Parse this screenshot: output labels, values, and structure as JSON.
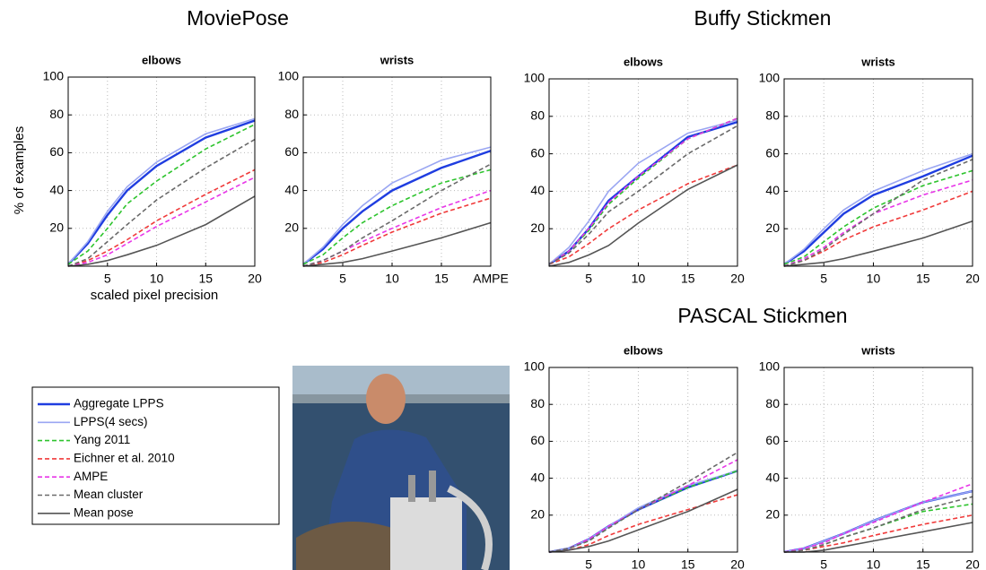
{
  "sections": [
    "MoviePose",
    "Buffy Stickmen",
    "PASCAL Stickmen"
  ],
  "chart_data": [
    {
      "type": "line",
      "title": "elbows",
      "ylabel": "% of examples",
      "xlabel": "scaled pixel precision",
      "x": [
        1,
        3,
        5,
        7,
        10,
        15,
        20
      ],
      "xlim": [
        1,
        20
      ],
      "ylim": [
        0,
        100
      ],
      "xticks": [
        5,
        10,
        15,
        20
      ],
      "yticks": [
        20,
        40,
        60,
        80,
        100
      ],
      "grid": true,
      "series": [
        {
          "name": "Aggregate LPPS",
          "color": "#1f3de0",
          "linestyle": "solid",
          "values": [
            1,
            12,
            27,
            40,
            53,
            68,
            77
          ]
        },
        {
          "name": "LPPS(4 secs)",
          "color": "#9aa6f2",
          "linestyle": "solid",
          "values": [
            1,
            13,
            29,
            42,
            55,
            70,
            78
          ]
        },
        {
          "name": "Yang 2011",
          "color": "#2ec42e",
          "linestyle": "dashed",
          "values": [
            1,
            8,
            20,
            33,
            45,
            62,
            75
          ]
        },
        {
          "name": "Eichner et al. 2010",
          "color": "#f03a3a",
          "linestyle": "dashed",
          "values": [
            0,
            3,
            8,
            14,
            24,
            38,
            51
          ]
        },
        {
          "name": "AMPE",
          "color": "#e836e8",
          "linestyle": "dashed",
          "values": [
            0,
            2,
            6,
            12,
            21,
            34,
            47
          ]
        },
        {
          "name": "Mean cluster",
          "color": "#6a6a6a",
          "linestyle": "dashed",
          "values": [
            0,
            4,
            13,
            22,
            35,
            52,
            67
          ]
        },
        {
          "name": "Mean pose",
          "color": "#555555",
          "linestyle": "solid",
          "values": [
            0,
            1,
            3,
            6,
            11,
            22,
            37
          ]
        }
      ]
    },
    {
      "type": "line",
      "title": "wrists",
      "x": [
        1,
        3,
        5,
        7,
        10,
        15,
        20
      ],
      "xlim": [
        1,
        20
      ],
      "ylim": [
        0,
        100
      ],
      "xticks": [
        5,
        10,
        15,
        {
          "value": 20,
          "label": "AMPE"
        }
      ],
      "yticks": [
        20,
        40,
        60,
        80,
        100
      ],
      "grid": true,
      "series": [
        {
          "name": "Aggregate LPPS",
          "color": "#1f3de0",
          "linestyle": "solid",
          "values": [
            1,
            9,
            20,
            29,
            40,
            52,
            61
          ]
        },
        {
          "name": "LPPS(4 secs)",
          "color": "#9aa6f2",
          "linestyle": "solid",
          "values": [
            1,
            10,
            22,
            32,
            44,
            56,
            63
          ]
        },
        {
          "name": "Yang 2011",
          "color": "#2ec42e",
          "linestyle": "dashed",
          "values": [
            1,
            6,
            15,
            23,
            32,
            44,
            51
          ]
        },
        {
          "name": "Eichner et al. 2010",
          "color": "#f03a3a",
          "linestyle": "dashed",
          "values": [
            0,
            2,
            6,
            11,
            18,
            28,
            36
          ]
        },
        {
          "name": "AMPE",
          "color": "#e836e8",
          "linestyle": "dashed",
          "values": [
            0,
            3,
            8,
            13,
            20,
            31,
            40
          ]
        },
        {
          "name": "Mean cluster",
          "color": "#6a6a6a",
          "linestyle": "dashed",
          "values": [
            0,
            3,
            8,
            15,
            24,
            40,
            54
          ]
        },
        {
          "name": "Mean pose",
          "color": "#555555",
          "linestyle": "solid",
          "values": [
            0,
            1,
            2,
            4,
            8,
            15,
            23
          ]
        }
      ]
    },
    {
      "type": "line",
      "title": "elbows",
      "x": [
        1,
        3,
        5,
        7,
        10,
        15,
        20
      ],
      "xlim": [
        1,
        20
      ],
      "ylim": [
        0,
        100
      ],
      "xticks": [
        5,
        10,
        15,
        20
      ],
      "yticks": [
        20,
        40,
        60,
        80,
        100
      ],
      "grid": true,
      "series": [
        {
          "name": "Aggregate LPPS",
          "color": "#1f3de0",
          "linestyle": "solid",
          "values": [
            1,
            8,
            20,
            35,
            48,
            69,
            77
          ]
        },
        {
          "name": "LPPS(4 secs)",
          "color": "#9aa6f2",
          "linestyle": "solid",
          "values": [
            1,
            10,
            24,
            40,
            55,
            71,
            78
          ]
        },
        {
          "name": "Yang 2011",
          "color": "#2ec42e",
          "linestyle": "dashed",
          "values": [
            1,
            8,
            19,
            33,
            47,
            68,
            79
          ]
        },
        {
          "name": "Eichner et al. 2010",
          "color": "#f03a3a",
          "linestyle": "dashed",
          "values": [
            1,
            5,
            12,
            20,
            30,
            44,
            54
          ]
        },
        {
          "name": "AMPE",
          "color": "#e836e8",
          "linestyle": "dashed",
          "values": [
            1,
            8,
            20,
            34,
            48,
            68,
            79
          ]
        },
        {
          "name": "Mean cluster",
          "color": "#6a6a6a",
          "linestyle": "dashed",
          "values": [
            1,
            7,
            17,
            29,
            40,
            60,
            75
          ]
        },
        {
          "name": "Mean pose",
          "color": "#555555",
          "linestyle": "solid",
          "values": [
            0,
            2,
            6,
            11,
            23,
            41,
            54
          ]
        }
      ]
    },
    {
      "type": "line",
      "title": "wrists",
      "x": [
        1,
        3,
        5,
        7,
        10,
        15,
        20
      ],
      "xlim": [
        1,
        20
      ],
      "ylim": [
        0,
        100
      ],
      "xticks": [
        5,
        10,
        15,
        20
      ],
      "yticks": [
        20,
        40,
        60,
        80,
        100
      ],
      "grid": true,
      "series": [
        {
          "name": "Aggregate LPPS",
          "color": "#1f3de0",
          "linestyle": "solid",
          "values": [
            1,
            8,
            18,
            28,
            38,
            48,
            59
          ]
        },
        {
          "name": "LPPS(4 secs)",
          "color": "#9aa6f2",
          "linestyle": "solid",
          "values": [
            1,
            9,
            20,
            30,
            40,
            51,
            60
          ]
        },
        {
          "name": "Yang 2011",
          "color": "#2ec42e",
          "linestyle": "dashed",
          "values": [
            1,
            5,
            13,
            21,
            31,
            43,
            51
          ]
        },
        {
          "name": "Eichner et al. 2010",
          "color": "#f03a3a",
          "linestyle": "dashed",
          "values": [
            0,
            3,
            8,
            14,
            21,
            30,
            40
          ]
        },
        {
          "name": "AMPE",
          "color": "#e836e8",
          "linestyle": "dashed",
          "values": [
            0,
            4,
            10,
            18,
            28,
            38,
            46
          ]
        },
        {
          "name": "Mean cluster",
          "color": "#6a6a6a",
          "linestyle": "dashed",
          "values": [
            0,
            3,
            9,
            17,
            28,
            46,
            57
          ]
        },
        {
          "name": "Mean pose",
          "color": "#555555",
          "linestyle": "solid",
          "values": [
            0,
            1,
            2,
            4,
            8,
            15,
            24
          ]
        }
      ]
    },
    {
      "type": "line",
      "title": "elbows",
      "x": [
        1,
        3,
        5,
        7,
        10,
        15,
        20
      ],
      "xlim": [
        1,
        20
      ],
      "ylim": [
        0,
        100
      ],
      "xticks": [
        5,
        10,
        15,
        20
      ],
      "yticks": [
        20,
        40,
        60,
        80,
        100
      ],
      "grid": true,
      "series": [
        {
          "name": "Aggregate LPPS",
          "color": "#1f3de0",
          "linestyle": "solid",
          "values": [
            0,
            2,
            7,
            14,
            23,
            35,
            44
          ]
        },
        {
          "name": "LPPS(4 secs)",
          "color": "#9aa6f2",
          "linestyle": "solid",
          "values": [
            0,
            2,
            7,
            14,
            24,
            36,
            44
          ]
        },
        {
          "name": "Yang 2011",
          "color": "#2ec42e",
          "linestyle": "dashed",
          "values": [
            0,
            2,
            6,
            13,
            23,
            35,
            44
          ]
        },
        {
          "name": "Eichner et al. 2010",
          "color": "#f03a3a",
          "linestyle": "dashed",
          "values": [
            0,
            1,
            4,
            9,
            15,
            23,
            31
          ]
        },
        {
          "name": "AMPE",
          "color": "#e836e8",
          "linestyle": "dashed",
          "values": [
            0,
            2,
            7,
            14,
            23,
            36,
            50
          ]
        },
        {
          "name": "Mean cluster",
          "color": "#6a6a6a",
          "linestyle": "dashed",
          "values": [
            0,
            2,
            6,
            13,
            23,
            38,
            54
          ]
        },
        {
          "name": "Mean pose",
          "color": "#555555",
          "linestyle": "solid",
          "values": [
            0,
            1,
            3,
            6,
            12,
            22,
            34
          ]
        }
      ]
    },
    {
      "type": "line",
      "title": "wrists",
      "x": [
        1,
        3,
        5,
        7,
        10,
        15,
        20
      ],
      "xlim": [
        1,
        20
      ],
      "ylim": [
        0,
        100
      ],
      "xticks": [
        5,
        10,
        15,
        20
      ],
      "yticks": [
        20,
        40,
        60,
        80,
        100
      ],
      "grid": true,
      "series": [
        {
          "name": "Aggregate LPPS",
          "color": "#1f3de0",
          "linestyle": "solid",
          "values": [
            0,
            2,
            6,
            10,
            17,
            27,
            33
          ]
        },
        {
          "name": "LPPS(4 secs)",
          "color": "#9aa6f2",
          "linestyle": "solid",
          "values": [
            0,
            2,
            6,
            10,
            17,
            27,
            33
          ]
        },
        {
          "name": "Yang 2011",
          "color": "#2ec42e",
          "linestyle": "dashed",
          "values": [
            0,
            1,
            4,
            8,
            13,
            22,
            26
          ]
        },
        {
          "name": "Eichner et al. 2010",
          "color": "#f03a3a",
          "linestyle": "dashed",
          "values": [
            0,
            1,
            3,
            5,
            9,
            15,
            20
          ]
        },
        {
          "name": "AMPE",
          "color": "#e836e8",
          "linestyle": "dashed",
          "values": [
            0,
            2,
            5,
            10,
            16,
            27,
            37
          ]
        },
        {
          "name": "Mean cluster",
          "color": "#6a6a6a",
          "linestyle": "dashed",
          "values": [
            0,
            1,
            4,
            8,
            13,
            23,
            30
          ]
        },
        {
          "name": "Mean pose",
          "color": "#555555",
          "linestyle": "solid",
          "values": [
            0,
            0,
            1,
            3,
            6,
            11,
            16
          ]
        }
      ]
    }
  ]
}
